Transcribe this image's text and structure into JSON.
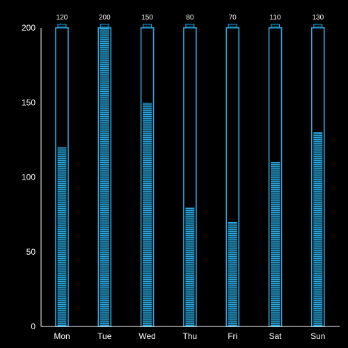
{
  "chart_data": {
    "type": "bar",
    "categories": [
      "Mon",
      "Tue",
      "Wed",
      "Thu",
      "Fri",
      "Sat",
      "Sun"
    ],
    "values": [
      120,
      200,
      150,
      80,
      70,
      110,
      130
    ],
    "ylim": [
      0,
      200
    ],
    "yticks": [
      0,
      50,
      100,
      150,
      200
    ],
    "data_labels": [
      "120",
      "200",
      "150",
      "80",
      "70",
      "110",
      "130"
    ],
    "grid": false,
    "background_color": "#000000",
    "bar_fill_color": "#29abe2",
    "bar_outline_color": "#29abe2",
    "segment_line_color": "#000000",
    "axis_color": "#ffffff",
    "text_color": "#ffffff"
  }
}
